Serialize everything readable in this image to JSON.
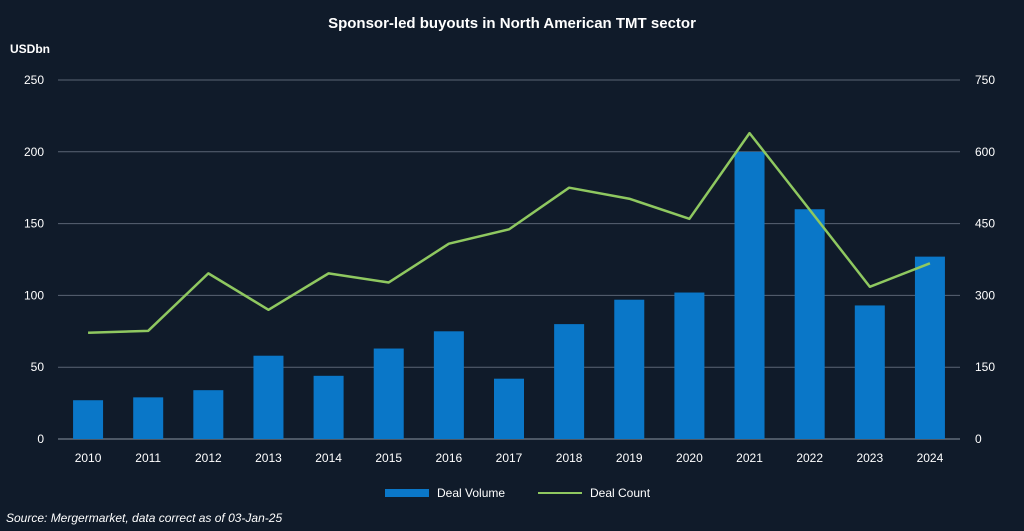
{
  "chart_data": {
    "type": "bar",
    "title": "Sponsor-led buyouts in North American TMT sector",
    "ylabel": "USDbn",
    "categories": [
      "2010",
      "2011",
      "2012",
      "2013",
      "2014",
      "2015",
      "2016",
      "2017",
      "2018",
      "2019",
      "2020",
      "2021",
      "2022",
      "2023",
      "2024"
    ],
    "series": [
      {
        "name": "Deal Volume",
        "type": "bar",
        "axis": "left",
        "color": "#0a77c8",
        "values": [
          27,
          29,
          34,
          58,
          44,
          63,
          75,
          42,
          80,
          97,
          102,
          200,
          160,
          93,
          127
        ]
      },
      {
        "name": "Deal Count",
        "type": "line",
        "axis": "right",
        "color": "#8fc860",
        "values": [
          222,
          226,
          346,
          270,
          346,
          327,
          408,
          438,
          525,
          502,
          460,
          639,
          479,
          318,
          367
        ]
      }
    ],
    "ylim": [
      0,
      250
    ],
    "yticks": [
      0,
      50,
      100,
      150,
      200,
      250
    ],
    "y2lim": [
      0,
      750
    ],
    "y2ticks": [
      0,
      150,
      300,
      450,
      600,
      750
    ],
    "grid": true,
    "legend_position": "bottom"
  },
  "footer": {
    "source": "Source: Mergermarket, data correct as of 03-Jan-25"
  }
}
